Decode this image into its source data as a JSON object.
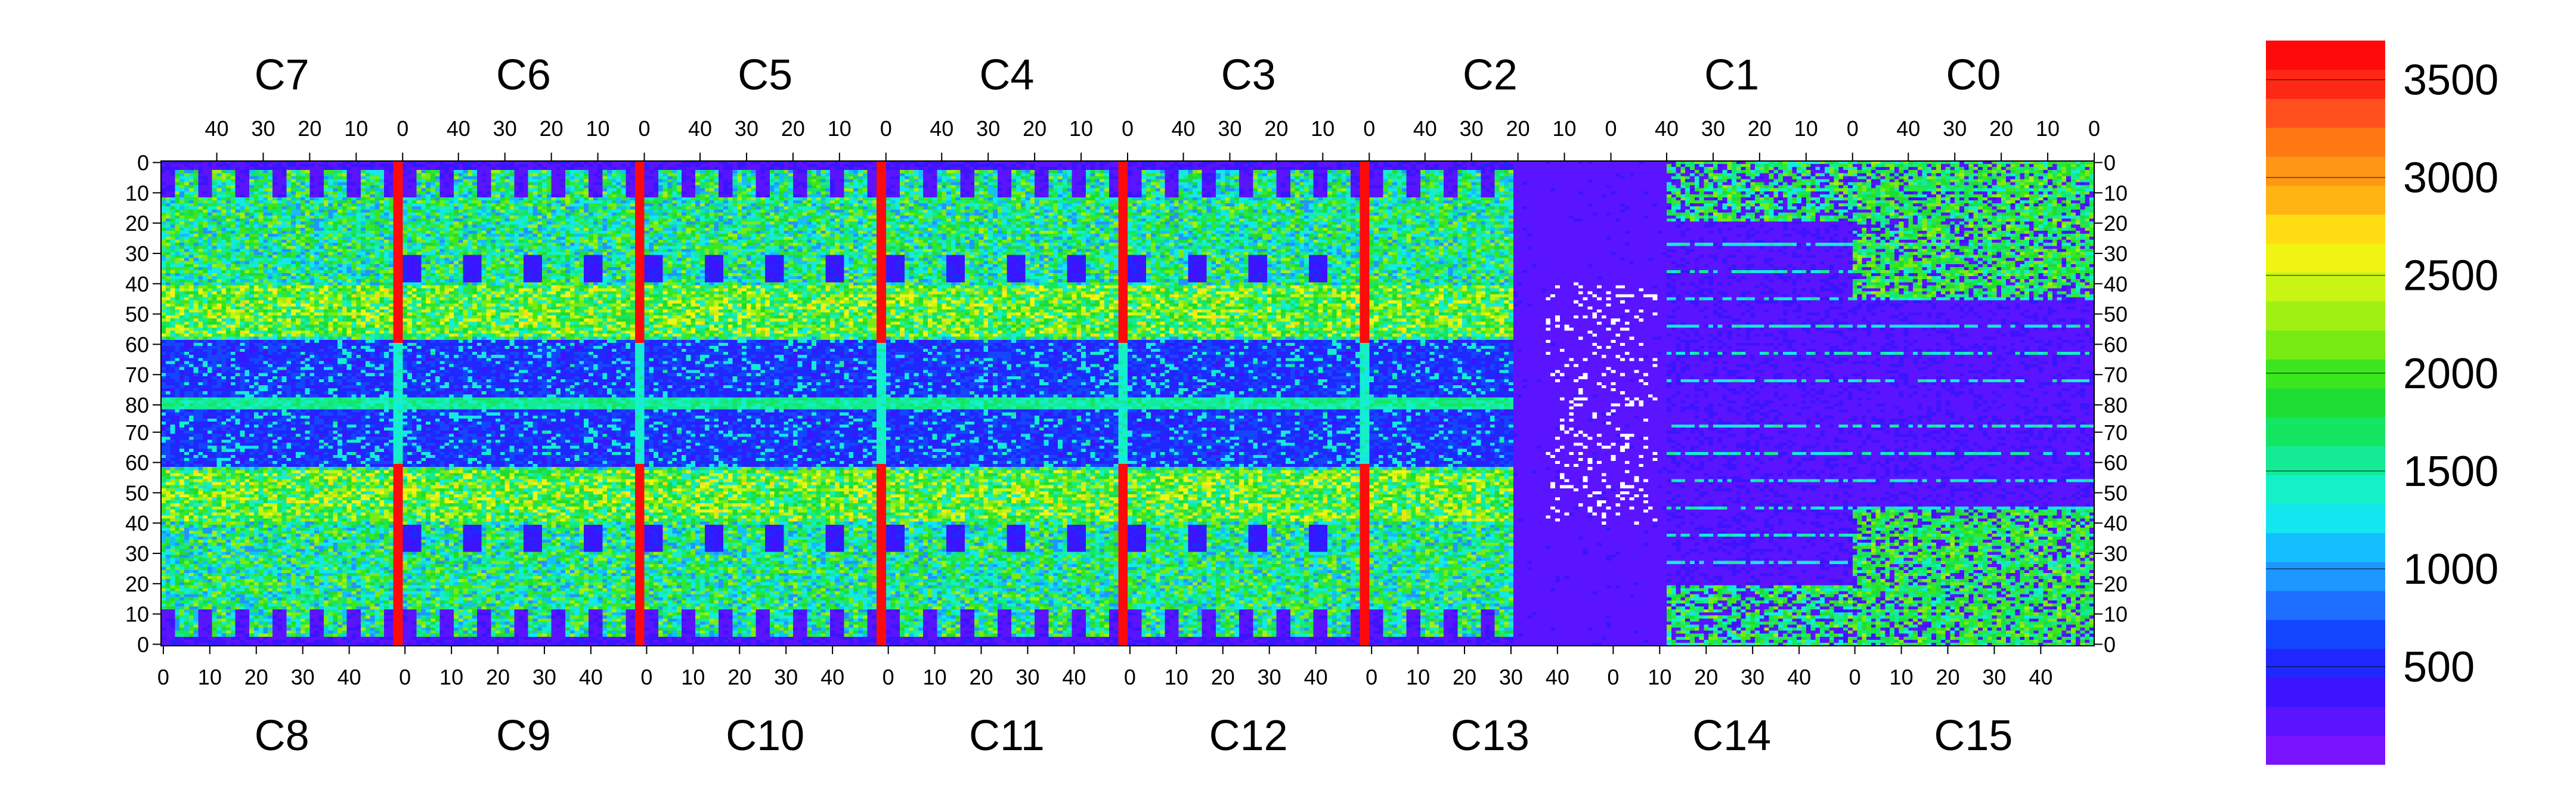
{
  "chart_data": {
    "type": "heatmap",
    "chips_top": [
      "C7",
      "C6",
      "C5",
      "C4",
      "C3",
      "C2",
      "C1",
      "C0"
    ],
    "chips_bottom": [
      "C8",
      "C9",
      "C10",
      "C11",
      "C12",
      "C13",
      "C14",
      "C15"
    ],
    "top_x_ticks": [
      "40",
      "30",
      "20",
      "10",
      "0"
    ],
    "bottom_x_ticks": [
      "0",
      "10",
      "20",
      "30",
      "40"
    ],
    "y_ticks_top_half": [
      "0",
      "10",
      "20",
      "30",
      "40",
      "50",
      "60",
      "70",
      "80"
    ],
    "y_ticks_bottom_half": [
      "70",
      "60",
      "50",
      "40",
      "30",
      "20",
      "10",
      "0"
    ],
    "chip_columns": 52,
    "rows_per_half": 80,
    "colorbar": {
      "min": 0,
      "max": 3700,
      "tick_values": [
        500,
        1000,
        1500,
        2000,
        2500,
        3000,
        3500
      ],
      "tick_labels": [
        "500",
        "1000",
        "1500",
        "2000",
        "2500",
        "3000",
        "3500"
      ],
      "colors": [
        "#7a14ff",
        "#5a14ff",
        "#3c14ff",
        "#1e28ff",
        "#1446ff",
        "#1e6eff",
        "#1e96ff",
        "#14beff",
        "#14e6f0",
        "#14f0c8",
        "#14eb96",
        "#14e664",
        "#1edc32",
        "#3ce61e",
        "#78eb14",
        "#a0f014",
        "#c8f514",
        "#f0f514",
        "#ffdc14",
        "#ffb414",
        "#ff9614",
        "#ff7814",
        "#ff501e",
        "#ff2814",
        "#ff0a0a"
      ]
    },
    "description_values": {
      "background_level": 150,
      "typical_pixel_level": 1600,
      "hot_edge_columns_level": 3600,
      "bright_central_row": 80
    }
  }
}
